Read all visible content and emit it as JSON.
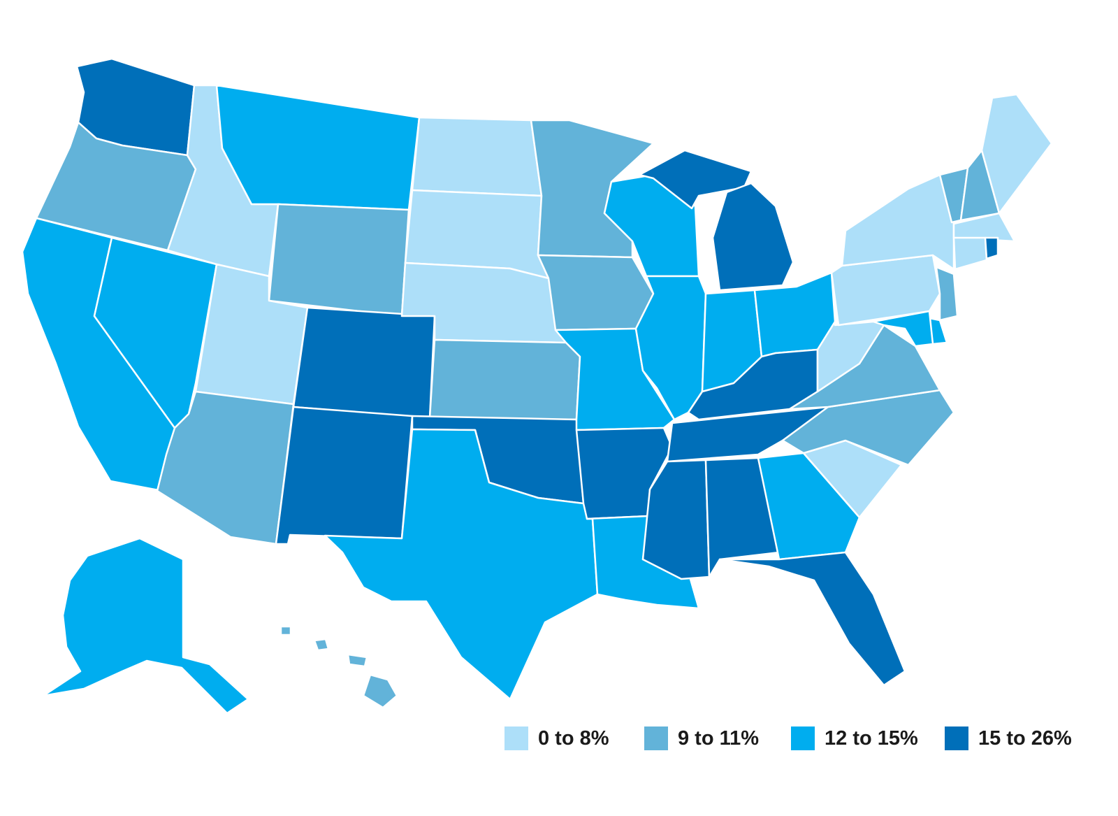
{
  "colors": {
    "background": "#ffffff",
    "border": "#ffffff",
    "bin_0_8": "#addff9",
    "bin_9_11": "#62b3d9",
    "bin_12_15": "#00adef",
    "bin_15_26": "#006fb9"
  },
  "legend": {
    "items": [
      {
        "label": "0 to 8%",
        "bin": "bin_0_8"
      },
      {
        "label": "9 to 11%",
        "bin": "bin_9_11"
      },
      {
        "label": "12 to 15%",
        "bin": "bin_12_15"
      },
      {
        "label": "15 to 26%",
        "bin": "bin_15_26"
      }
    ]
  },
  "states": {
    "WA": "bin_15_26",
    "OR": "bin_9_11",
    "CA": "bin_12_15",
    "NV": "bin_12_15",
    "ID": "bin_0_8",
    "MT": "bin_12_15",
    "WY": "bin_9_11",
    "UT": "bin_0_8",
    "AZ": "bin_9_11",
    "CO": "bin_15_26",
    "NM": "bin_15_26",
    "ND": "bin_0_8",
    "SD": "bin_0_8",
    "NE": "bin_0_8",
    "KS": "bin_9_11",
    "OK": "bin_15_26",
    "TX": "bin_12_15",
    "MN": "bin_9_11",
    "IA": "bin_9_11",
    "MO": "bin_12_15",
    "AR": "bin_15_26",
    "LA": "bin_12_15",
    "WI": "bin_12_15",
    "IL": "bin_12_15",
    "MI": "bin_15_26",
    "IN": "bin_12_15",
    "OH": "bin_12_15",
    "KY": "bin_15_26",
    "TN": "bin_15_26",
    "MS": "bin_15_26",
    "AL": "bin_15_26",
    "GA": "bin_12_15",
    "FL": "bin_15_26",
    "SC": "bin_0_8",
    "NC": "bin_9_11",
    "VA": "bin_9_11",
    "WV": "bin_0_8",
    "PA": "bin_0_8",
    "NY": "bin_0_8",
    "VT": "bin_9_11",
    "NH": "bin_9_11",
    "ME": "bin_0_8",
    "MA": "bin_0_8",
    "CT": "bin_0_8",
    "RI": "bin_15_26",
    "NJ": "bin_9_11",
    "DE": "bin_12_15",
    "MD": "bin_12_15",
    "AK": "bin_12_15",
    "HI": "bin_9_11"
  }
}
